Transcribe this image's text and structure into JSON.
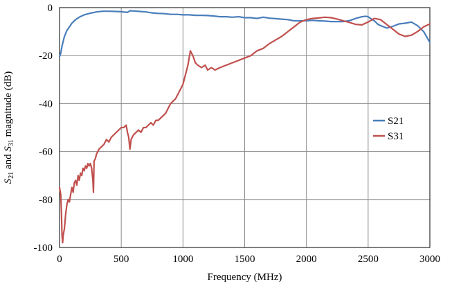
{
  "chart_data": {
    "type": "line",
    "title": "",
    "xlabel": "Frequency (MHz)",
    "ylabel_parts": [
      {
        "text": "S",
        "italic": true
      },
      {
        "text": "21",
        "sub": true
      },
      {
        "text": " and ",
        "italic": false
      },
      {
        "text": "S",
        "italic": true
      },
      {
        "text": "31",
        "sub": true
      },
      {
        "text": " magnitude (dB)",
        "italic": false
      }
    ],
    "xlim": [
      0,
      3000
    ],
    "ylim": [
      -100,
      0
    ],
    "xticks": [
      0,
      500,
      1000,
      1500,
      2000,
      2500,
      3000
    ],
    "yticks": [
      0,
      -20,
      -40,
      -60,
      -80,
      -100
    ],
    "grid": true,
    "legend_position": "right",
    "series": [
      {
        "name": "S21",
        "color": "#4a7ebb",
        "x": [
          0,
          10,
          20,
          40,
          60,
          80,
          100,
          130,
          160,
          200,
          250,
          300,
          350,
          400,
          450,
          500,
          550,
          570,
          600,
          650,
          700,
          750,
          800,
          850,
          900,
          950,
          1000,
          1050,
          1100,
          1150,
          1200,
          1250,
          1300,
          1350,
          1400,
          1450,
          1500,
          1550,
          1600,
          1650,
          1700,
          1750,
          1800,
          1850,
          1900,
          1950,
          2000,
          2050,
          2100,
          2150,
          2200,
          2250,
          2300,
          2350,
          2400,
          2450,
          2480,
          2500,
          2520,
          2550,
          2580,
          2600,
          2650,
          2700,
          2750,
          2800,
          2850,
          2900,
          2950,
          3000
        ],
        "y": [
          -20.5,
          -19,
          -16,
          -12,
          -9.5,
          -8,
          -6.5,
          -5,
          -4,
          -3,
          -2.3,
          -1.8,
          -1.5,
          -1.5,
          -1.6,
          -1.7,
          -2,
          -1.3,
          -1.4,
          -1.6,
          -1.8,
          -2.2,
          -2.4,
          -2.5,
          -2.8,
          -2.8,
          -3,
          -3,
          -3.2,
          -3.2,
          -3.3,
          -3.5,
          -3.8,
          -3.8,
          -4,
          -3.8,
          -4.2,
          -4.2,
          -4.5,
          -4,
          -4.4,
          -4.6,
          -4.8,
          -5,
          -5.5,
          -5.5,
          -5.5,
          -5.3,
          -5.5,
          -5.6,
          -5.8,
          -5.8,
          -5.8,
          -5.4,
          -4.5,
          -3.8,
          -3.6,
          -3.8,
          -4.5,
          -5.5,
          -7,
          -7.5,
          -8.5,
          -7.8,
          -6.8,
          -6.5,
          -6,
          -7.5,
          -10,
          -14.5
        ]
      },
      {
        "name": "S31",
        "color": "#c0504d",
        "x": [
          0,
          10,
          15,
          20,
          25,
          30,
          40,
          50,
          60,
          70,
          80,
          90,
          100,
          110,
          120,
          130,
          140,
          150,
          160,
          170,
          180,
          190,
          200,
          210,
          220,
          230,
          240,
          250,
          260,
          270,
          275,
          280,
          290,
          300,
          320,
          340,
          360,
          380,
          400,
          420,
          440,
          460,
          480,
          500,
          520,
          540,
          550,
          560,
          570,
          580,
          590,
          600,
          620,
          640,
          660,
          680,
          700,
          720,
          740,
          760,
          780,
          800,
          820,
          840,
          860,
          880,
          900,
          920,
          940,
          960,
          980,
          1000,
          1020,
          1040,
          1060,
          1080,
          1100,
          1120,
          1150,
          1180,
          1200,
          1230,
          1260,
          1300,
          1350,
          1400,
          1450,
          1500,
          1550,
          1600,
          1650,
          1700,
          1750,
          1800,
          1850,
          1900,
          1950,
          2000,
          2050,
          2100,
          2150,
          2200,
          2250,
          2300,
          2350,
          2400,
          2450,
          2500,
          2550,
          2600,
          2650,
          2700,
          2750,
          2800,
          2850,
          2900,
          2950,
          3000
        ],
        "y": [
          -75,
          -78,
          -85,
          -95,
          -98,
          -95,
          -92,
          -86,
          -82,
          -80,
          -81,
          -78,
          -75,
          -77,
          -73,
          -72,
          -74,
          -70,
          -72,
          -69,
          -70,
          -67,
          -68,
          -66,
          -67,
          -65,
          -66,
          -65,
          -67,
          -72,
          -77,
          -64,
          -63,
          -61,
          -59,
          -58,
          -57,
          -55,
          -56,
          -54,
          -53,
          -52,
          -51,
          -50,
          -50,
          -49,
          -52,
          -54,
          -59,
          -55,
          -54,
          -53,
          -52,
          -51,
          -52,
          -50,
          -50,
          -49,
          -48,
          -49,
          -47,
          -47,
          -46,
          -45,
          -44,
          -42,
          -40,
          -39,
          -38,
          -36,
          -34,
          -32,
          -28,
          -24,
          -18,
          -20,
          -23,
          -24,
          -25,
          -24,
          -26,
          -25,
          -26,
          -25,
          -24,
          -23,
          -22,
          -21,
          -20,
          -18,
          -17,
          -15,
          -13.5,
          -12,
          -10,
          -8,
          -6,
          -5,
          -4.5,
          -4.3,
          -4,
          -4.2,
          -4.8,
          -5.5,
          -6.2,
          -7,
          -7.2,
          -6,
          -4.5,
          -5,
          -7,
          -9,
          -11,
          -12,
          -11.5,
          -10,
          -8,
          -6.8
        ]
      }
    ]
  }
}
